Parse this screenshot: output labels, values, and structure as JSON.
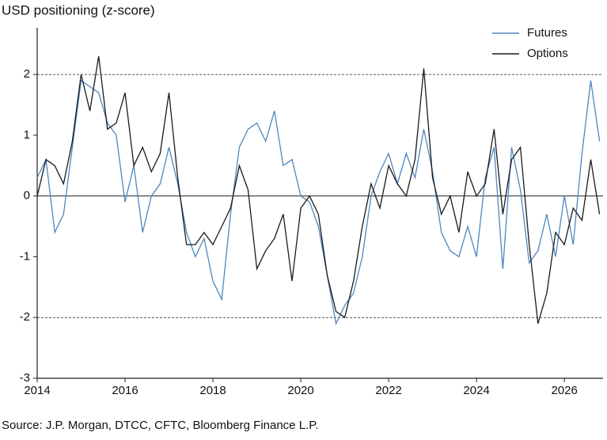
{
  "chart_data": {
    "type": "line",
    "title": "USD positioning (z-score)",
    "source": "Source: J.P. Morgan, DTCC, CFTC, Bloomberg Finance L.P.",
    "x": [
      2014.0,
      2014.2,
      2014.4,
      2014.6,
      2014.8,
      2015.0,
      2015.2,
      2015.4,
      2015.6,
      2015.8,
      2016.0,
      2016.2,
      2016.4,
      2016.6,
      2016.8,
      2017.0,
      2017.2,
      2017.4,
      2017.6,
      2017.8,
      2018.0,
      2018.2,
      2018.4,
      2018.6,
      2018.8,
      2019.0,
      2019.2,
      2019.4,
      2019.6,
      2019.8,
      2020.0,
      2020.2,
      2020.4,
      2020.6,
      2020.8,
      2021.0,
      2021.2,
      2021.4,
      2021.6,
      2021.8,
      2022.0,
      2022.2,
      2022.4,
      2022.6,
      2022.8,
      2023.0,
      2023.2,
      2023.4,
      2023.6,
      2023.8,
      2024.0,
      2024.2,
      2024.4,
      2024.6,
      2024.8,
      2025.0,
      2025.2,
      2025.4,
      2025.6,
      2025.8,
      2026.0,
      2026.2,
      2026.4,
      2026.6,
      2026.8
    ],
    "series": [
      {
        "name": "Futures",
        "color": "#4f86c0",
        "values": [
          0.3,
          0.6,
          -0.6,
          -0.3,
          0.8,
          1.9,
          1.8,
          1.7,
          1.2,
          1.0,
          -0.1,
          0.5,
          -0.6,
          0.0,
          0.2,
          0.8,
          0.2,
          -0.6,
          -1.0,
          -0.7,
          -1.4,
          -1.7,
          -0.3,
          0.8,
          1.1,
          1.2,
          0.9,
          1.4,
          0.5,
          0.6,
          0.0,
          -0.1,
          -0.5,
          -1.3,
          -2.1,
          -1.8,
          -1.6,
          -1.0,
          0.0,
          0.4,
          0.7,
          0.2,
          0.7,
          0.3,
          1.1,
          0.4,
          -0.6,
          -0.9,
          -1.0,
          -0.5,
          -1.0,
          0.3,
          0.8,
          -1.2,
          0.8,
          0.1,
          -1.1,
          -0.9,
          -0.3,
          -1.0,
          0.0,
          -0.8,
          0.7,
          1.9,
          0.9
        ]
      },
      {
        "name": "Options",
        "color": "#1a1a1a",
        "values": [
          0.0,
          0.6,
          0.5,
          0.2,
          0.9,
          2.0,
          1.4,
          2.3,
          1.1,
          1.2,
          1.7,
          0.5,
          0.8,
          0.4,
          0.7,
          1.7,
          0.3,
          -0.8,
          -0.8,
          -0.6,
          -0.8,
          -0.5,
          -0.2,
          0.5,
          0.1,
          -1.2,
          -0.9,
          -0.7,
          -0.3,
          -1.4,
          -0.2,
          0.0,
          -0.3,
          -1.3,
          -1.9,
          -2.0,
          -1.4,
          -0.5,
          0.2,
          -0.2,
          0.5,
          0.2,
          0.0,
          0.6,
          2.1,
          0.3,
          -0.3,
          0.0,
          -0.6,
          0.4,
          0.0,
          0.2,
          1.1,
          -0.3,
          0.6,
          0.8,
          -0.8,
          -2.1,
          -1.6,
          -0.6,
          -0.8,
          -0.2,
          -0.4,
          0.6,
          -0.3
        ]
      }
    ],
    "xlim": [
      2014,
      2026.88
    ],
    "xticks": [
      2014,
      2016,
      2018,
      2020,
      2022,
      2024,
      2026
    ],
    "ylim": [
      -3,
      2.77
    ],
    "yticks": [
      -3,
      -2,
      -1,
      0,
      1,
      2
    ],
    "reference_lines": [
      {
        "value": 2,
        "style": "dashed"
      },
      {
        "value": 0,
        "style": "solid"
      },
      {
        "value": -2,
        "style": "dashed"
      }
    ],
    "legend": "upper right"
  }
}
